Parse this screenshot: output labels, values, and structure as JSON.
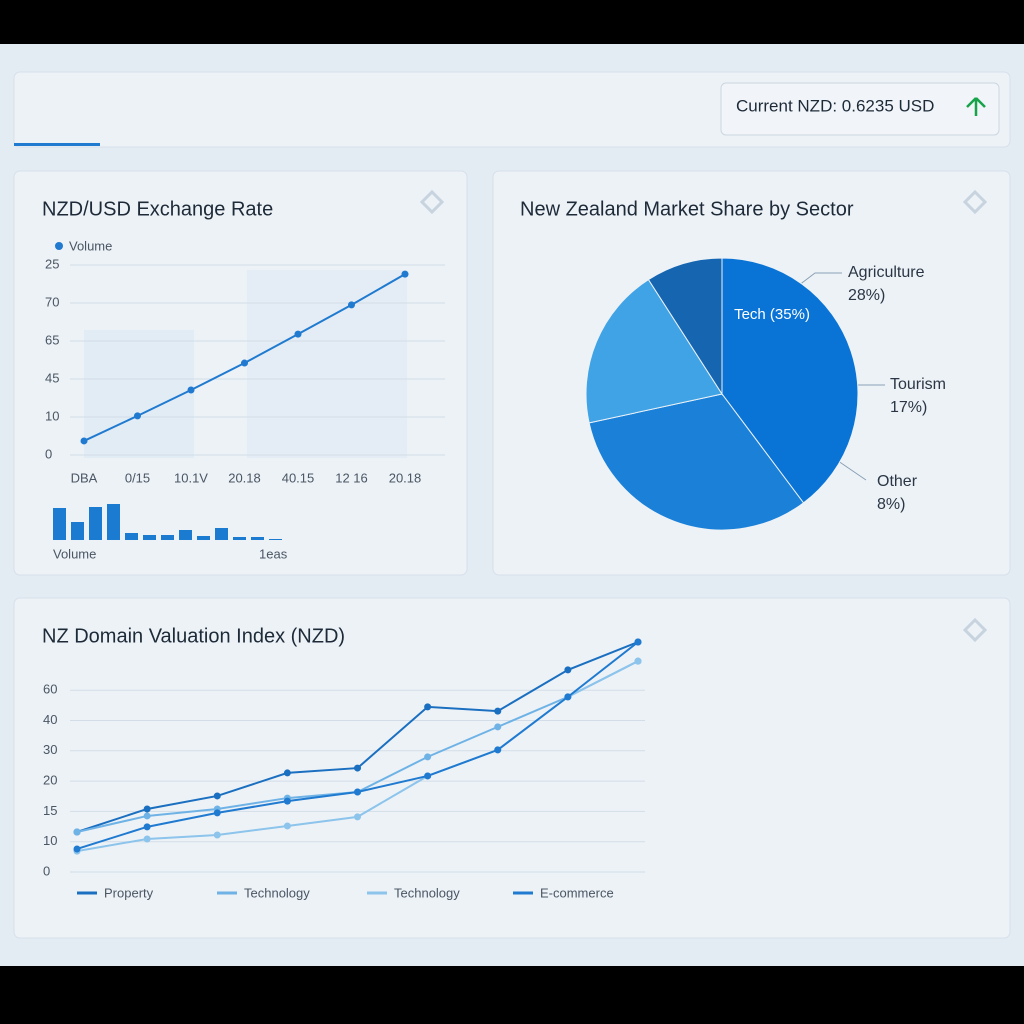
{
  "header": {
    "ticker": "Current NZD: 0.6235 USD"
  },
  "chart_data": [
    {
      "type": "line",
      "title": "NZD/USD Exchange Rate",
      "categories": [
        "DBA",
        "0/15",
        "10.1V",
        "20.18",
        "40.15",
        "12 16",
        "20.18"
      ],
      "series": [
        {
          "name": "Volume",
          "color": "#1f7ad0",
          "values": [
            0.37,
            1.03,
            1.71,
            2.42,
            3.18,
            3.95,
            4.76
          ]
        }
      ],
      "ylim": [
        0,
        5
      ],
      "yticks": [
        0,
        {
          "value": 1,
          "label": "10"
        },
        {
          "value": 2,
          "label": "45"
        },
        {
          "value": 3,
          "label": "65"
        },
        {
          "value": 4,
          "label": "70"
        },
        {
          "value": 5,
          "label": "25"
        }
      ],
      "grid": true
    },
    {
      "type": "bar",
      "labels": [
        "Volume",
        "1eas"
      ],
      "categories": [
        null,
        null,
        null,
        null,
        null,
        null,
        null,
        null,
        null,
        null,
        null,
        null,
        null
      ],
      "values": [
        32,
        18,
        33,
        36,
        7,
        5,
        5,
        10,
        4,
        12,
        3,
        3,
        1
      ],
      "color": "#1b7bd0"
    },
    {
      "type": "pie",
      "title": "New Zealand Market Share by Sector",
      "categories": [
        "Tech",
        "Agriculture",
        "Tourism",
        "Other"
      ],
      "values": [
        35,
        28,
        17,
        8
      ],
      "value_labels": [
        "(35%)",
        "28%)",
        "17%)",
        "8%)"
      ],
      "colors": [
        "#0a74d6",
        "#1a80d8",
        "#3fa3e6",
        "#1565b0"
      ]
    },
    {
      "type": "line",
      "title": "NZ Domain Valuation Index (NZD)",
      "categories": [
        null,
        null,
        null,
        null,
        null,
        null,
        null,
        null,
        null
      ],
      "series": [
        {
          "name": "Property",
          "color": "#1a6fc0",
          "values": [
            1.32,
            2.08,
            2.51,
            3.27,
            3.43,
            5.45,
            5.31,
            6.67,
            7.59
          ]
        },
        {
          "name": "Technology",
          "color": "#6fb3e6",
          "values": [
            1.32,
            1.85,
            2.08,
            2.44,
            2.64,
            3.8,
            4.79,
            5.78,
            6.96
          ]
        },
        {
          "name": "Technology",
          "color": "#8cc4ec",
          "values": [
            0.69,
            1.09,
            1.22,
            1.52,
            1.82,
            3.17,
            4.03,
            5.78,
            6.96
          ]
        },
        {
          "name": "E-commerce",
          "color": "#1f7ad0",
          "values": [
            0.76,
            1.49,
            1.95,
            2.34,
            2.64,
            3.17,
            4.03,
            5.78,
            7.59
          ]
        }
      ],
      "ylim": [
        0,
        7.7
      ],
      "yticks": [
        0,
        {
          "value": 1,
          "label": "10"
        },
        {
          "value": 2,
          "label": "15"
        },
        {
          "value": 3,
          "label": "20"
        },
        {
          "value": 4,
          "label": "30"
        },
        {
          "value": 5,
          "label": "40"
        },
        {
          "value": 6,
          "label": "60"
        }
      ],
      "grid": true
    }
  ]
}
